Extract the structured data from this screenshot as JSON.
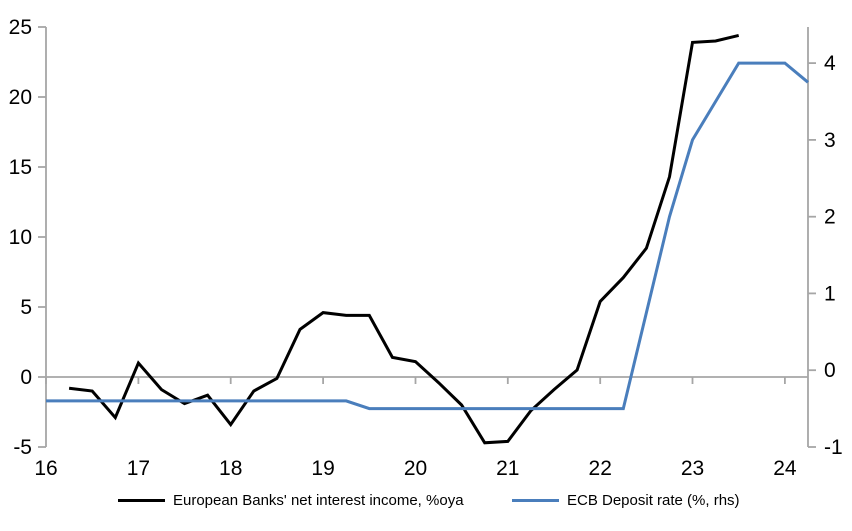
{
  "chart_data": {
    "type": "line",
    "title": "",
    "x_axis": {
      "range": [
        16,
        24.25
      ],
      "tick_values": [
        16,
        17,
        18,
        19,
        20,
        21,
        22,
        23,
        24
      ],
      "tick_labels": [
        "16",
        "17",
        "18",
        "19",
        "20",
        "21",
        "22",
        "23",
        "24"
      ]
    },
    "left_axis": {
      "range": [
        -5,
        25
      ],
      "tick_values": [
        25,
        20,
        15,
        10,
        5,
        0,
        -5
      ],
      "tick_labels": [
        "25",
        "20",
        "15",
        "10",
        "5",
        "0",
        "-5"
      ]
    },
    "right_axis": {
      "range": [
        -1,
        4.47
      ],
      "tick_values": [
        4,
        3,
        2,
        1,
        0,
        -1
      ],
      "tick_labels": [
        "4",
        "3",
        "2",
        "1",
        "0",
        "-1"
      ]
    },
    "grid": "zero-line-only",
    "legend_position": "bottom",
    "axis_color": "#a6a6a6",
    "series": [
      {
        "name": "European Banks' net interest income, %oya",
        "axis": "left",
        "color": "#000000",
        "x": [
          16.25,
          16.5,
          16.75,
          17,
          17.25,
          17.5,
          17.75,
          18,
          18.25,
          18.5,
          18.75,
          19,
          19.25,
          19.5,
          19.75,
          20,
          20.25,
          20.5,
          20.75,
          21,
          21.25,
          21.5,
          21.75,
          22,
          22.25,
          22.5,
          22.75,
          23,
          23.25,
          23.5
        ],
        "values": [
          -0.8,
          -1.0,
          -2.9,
          1.0,
          -0.9,
          -1.9,
          -1.3,
          -3.4,
          -1.0,
          -0.1,
          3.4,
          4.6,
          4.4,
          4.4,
          1.4,
          1.1,
          -0.4,
          -2.0,
          -4.7,
          -4.6,
          -2.4,
          -0.9,
          0.5,
          5.4,
          7.1,
          9.2,
          14.3,
          23.9,
          24.0,
          24.4
        ]
      },
      {
        "name": "ECB Deposit rate (%, rhs)",
        "axis": "right",
        "color": "#4a7ebc",
        "x": [
          16,
          16.25,
          16.5,
          16.75,
          17,
          17.25,
          17.5,
          17.75,
          18,
          18.25,
          18.5,
          18.75,
          19,
          19.25,
          19.5,
          19.75,
          20,
          20.25,
          20.5,
          20.75,
          21,
          21.25,
          21.5,
          21.75,
          22,
          22.25,
          22.5,
          22.75,
          23,
          23.25,
          23.5,
          23.75,
          24,
          24.25
        ],
        "values": [
          -0.4,
          -0.4,
          -0.4,
          -0.4,
          -0.4,
          -0.4,
          -0.4,
          -0.4,
          -0.4,
          -0.4,
          -0.4,
          -0.4,
          -0.4,
          -0.4,
          -0.5,
          -0.5,
          -0.5,
          -0.5,
          -0.5,
          -0.5,
          -0.5,
          -0.5,
          -0.5,
          -0.5,
          -0.5,
          -0.5,
          0.75,
          2.0,
          3.0,
          3.5,
          4.0,
          4.0,
          4.0,
          3.75
        ]
      }
    ],
    "legend": [
      {
        "label": "European Banks' net interest income, %oya",
        "color": "#000000"
      },
      {
        "label": "ECB Deposit rate (%, rhs)",
        "color": "#4a7ebc"
      }
    ]
  }
}
